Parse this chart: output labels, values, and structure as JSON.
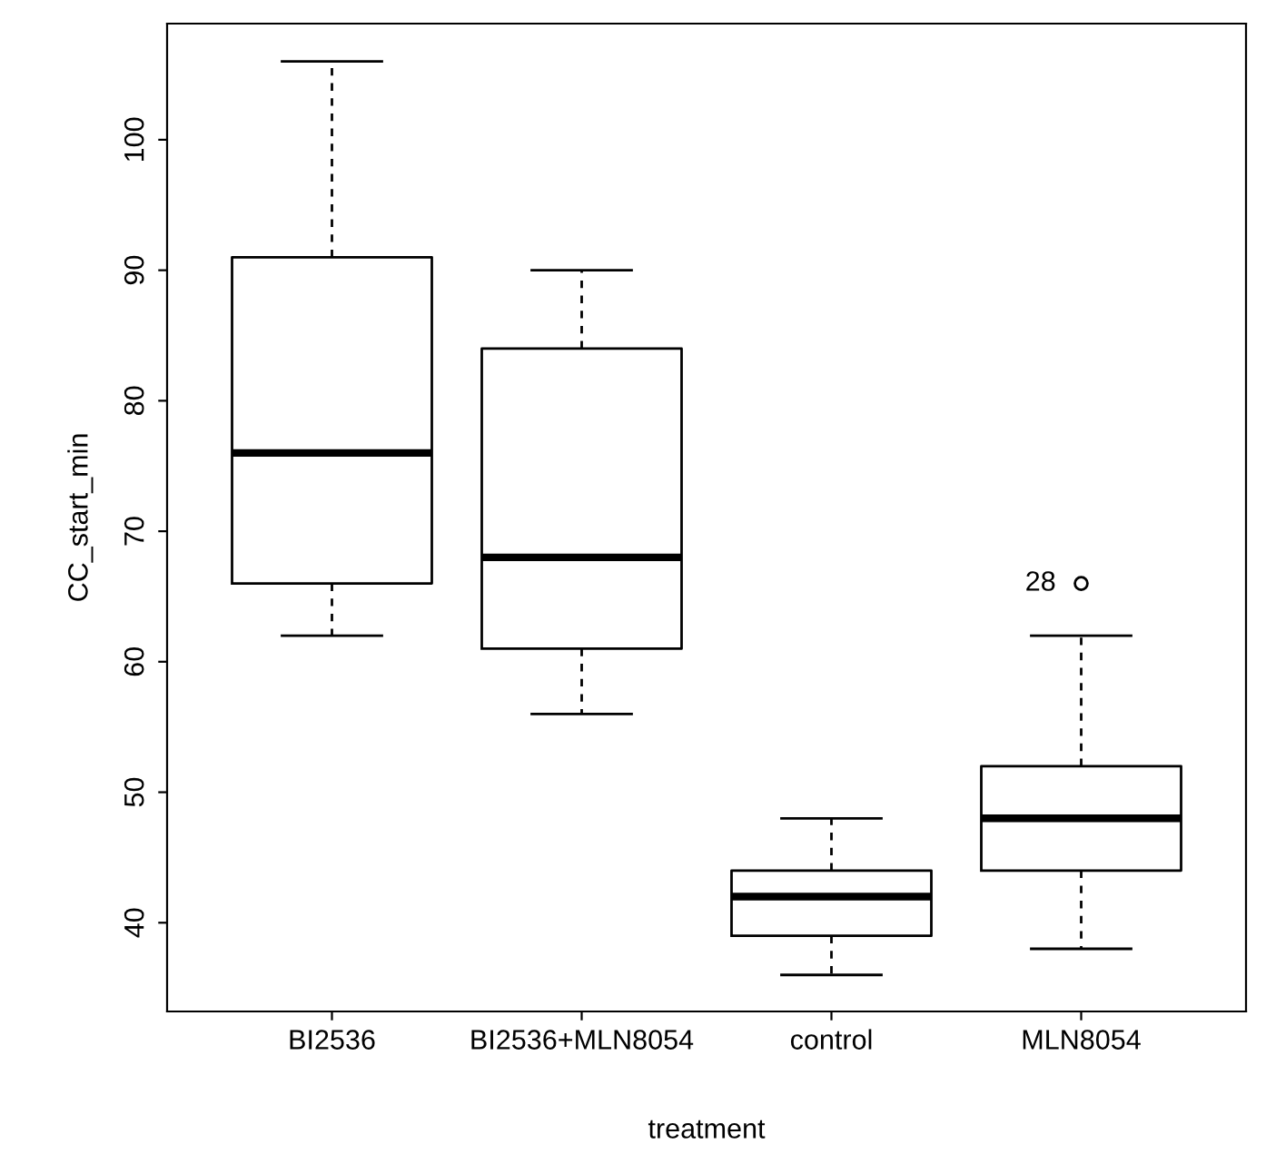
{
  "chart_data": {
    "type": "box",
    "xlabel": "treatment",
    "ylabel": "CC_start_min",
    "categories": [
      "BI2536",
      "BI2536+MLN8054",
      "control",
      "MLN8054"
    ],
    "boxes": [
      {
        "low": 62,
        "q1": 66,
        "median": 76,
        "q3": 91,
        "high": 106
      },
      {
        "low": 56,
        "q1": 61,
        "median": 68,
        "q3": 84,
        "high": 90
      },
      {
        "low": 36,
        "q1": 39,
        "median": 42,
        "q3": 44,
        "high": 48
      },
      {
        "low": 38,
        "q1": 44,
        "median": 48,
        "q3": 52,
        "high": 62,
        "outliers": [
          66
        ]
      }
    ],
    "annotations": [
      "28"
    ],
    "ylim": [
      33.2,
      108.9
    ],
    "yticks": [
      40,
      50,
      60,
      70,
      80,
      90,
      100
    ],
    "grid": false
  }
}
